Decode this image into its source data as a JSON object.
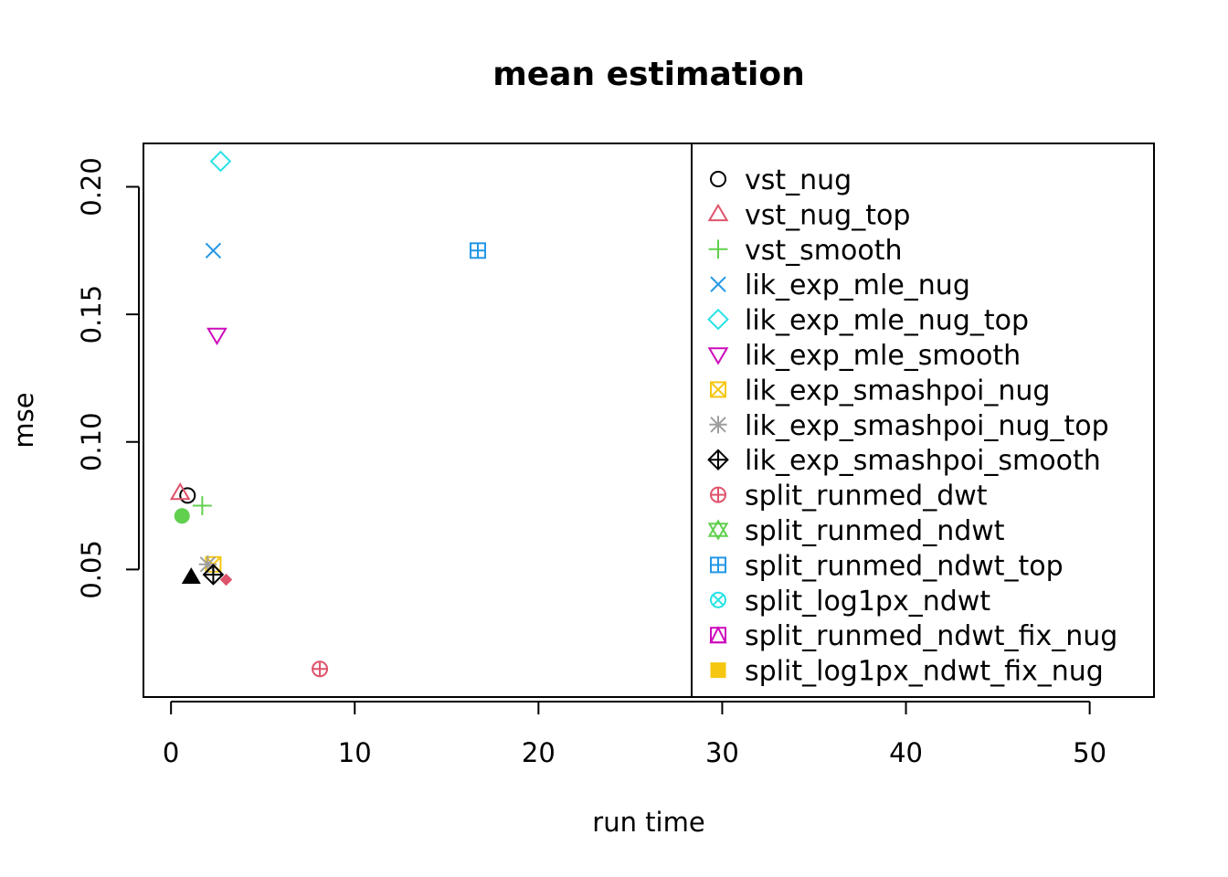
{
  "chart_data": {
    "type": "scatter",
    "title": "mean estimation",
    "xlabel": "run time",
    "ylabel": "mse",
    "xlim": [
      -1.5,
      53.5
    ],
    "ylim": [
      0.0,
      0.217
    ],
    "xticks": [
      0,
      10,
      20,
      30,
      40,
      50
    ],
    "yticks": [
      0.05,
      0.1,
      0.15,
      0.2
    ],
    "xtick_labels": [
      "0",
      "10",
      "20",
      "30",
      "40",
      "50"
    ],
    "ytick_labels": [
      "0.05",
      "0.10",
      "0.15",
      "0.20"
    ],
    "grid": false,
    "legend_position": "right, inside plot area (truncated at bottom)",
    "series": [
      {
        "name": "vst_nug",
        "color": "#000000",
        "symbol": "open-circle",
        "x": 0.9,
        "y": 0.079
      },
      {
        "name": "vst_nug_top",
        "color": "#DF536B",
        "symbol": "open-triangle-up",
        "x": 0.5,
        "y": 0.08
      },
      {
        "name": "vst_smooth",
        "color": "#61D04F",
        "symbol": "plus",
        "x": 1.7,
        "y": 0.075
      },
      {
        "name": "lik_exp_mle_nug",
        "color": "#2297E6",
        "symbol": "cross",
        "x": 2.3,
        "y": 0.175
      },
      {
        "name": "lik_exp_mle_nug_top",
        "color": "#28E2E5",
        "symbol": "open-diamond",
        "x": 2.7,
        "y": 0.21
      },
      {
        "name": "lik_exp_mle_smooth",
        "color": "#CD0BBC",
        "symbol": "open-triangle-down",
        "x": 2.5,
        "y": 0.142
      },
      {
        "name": "lik_exp_smashpoi_nug",
        "color": "#F5C710",
        "symbol": "square-cross",
        "x": 2.3,
        "y": 0.052
      },
      {
        "name": "lik_exp_smashpoi_nug_top",
        "color": "#9E9E9E",
        "symbol": "asterisk",
        "x": 2.0,
        "y": 0.052
      },
      {
        "name": "lik_exp_smashpoi_smooth",
        "color": "#000000",
        "symbol": "diamond-plus",
        "x": 2.3,
        "y": 0.048
      },
      {
        "name": "split_runmed_dwt",
        "color": "#DF536B",
        "symbol": "circle-plus",
        "x": 8.1,
        "y": 0.011
      },
      {
        "name": "split_runmed_ndwt",
        "color": "#61D04F",
        "symbol": "star-of-david",
        "x": null,
        "y": null
      },
      {
        "name": "split_runmed_ndwt_top",
        "color": "#2297E6",
        "symbol": "square-plus",
        "x": 16.7,
        "y": 0.175
      },
      {
        "name": "split_log1px_ndwt",
        "color": "#28E2E5",
        "symbol": "circle-cross",
        "x": null,
        "y": null
      },
      {
        "name": "split_runmed_ndwt_fix_nug",
        "color": "#CD0BBC",
        "symbol": "square-triangle",
        "x": null,
        "y": null
      },
      {
        "name": "split_log1px_ndwt_fix_nug",
        "color": "#F5C710",
        "symbol": "filled-square",
        "x": null,
        "y": null
      },
      {
        "name": "",
        "color": "#61D04F",
        "symbol": "filled-circle",
        "x": 0.6,
        "y": 0.071
      },
      {
        "name": "",
        "color": "#000000",
        "symbol": "filled-triangle-up",
        "x": 1.1,
        "y": 0.047
      },
      {
        "name": "",
        "color": "#DF536B",
        "symbol": "filled-diamond",
        "x": 3.0,
        "y": 0.046
      }
    ]
  }
}
